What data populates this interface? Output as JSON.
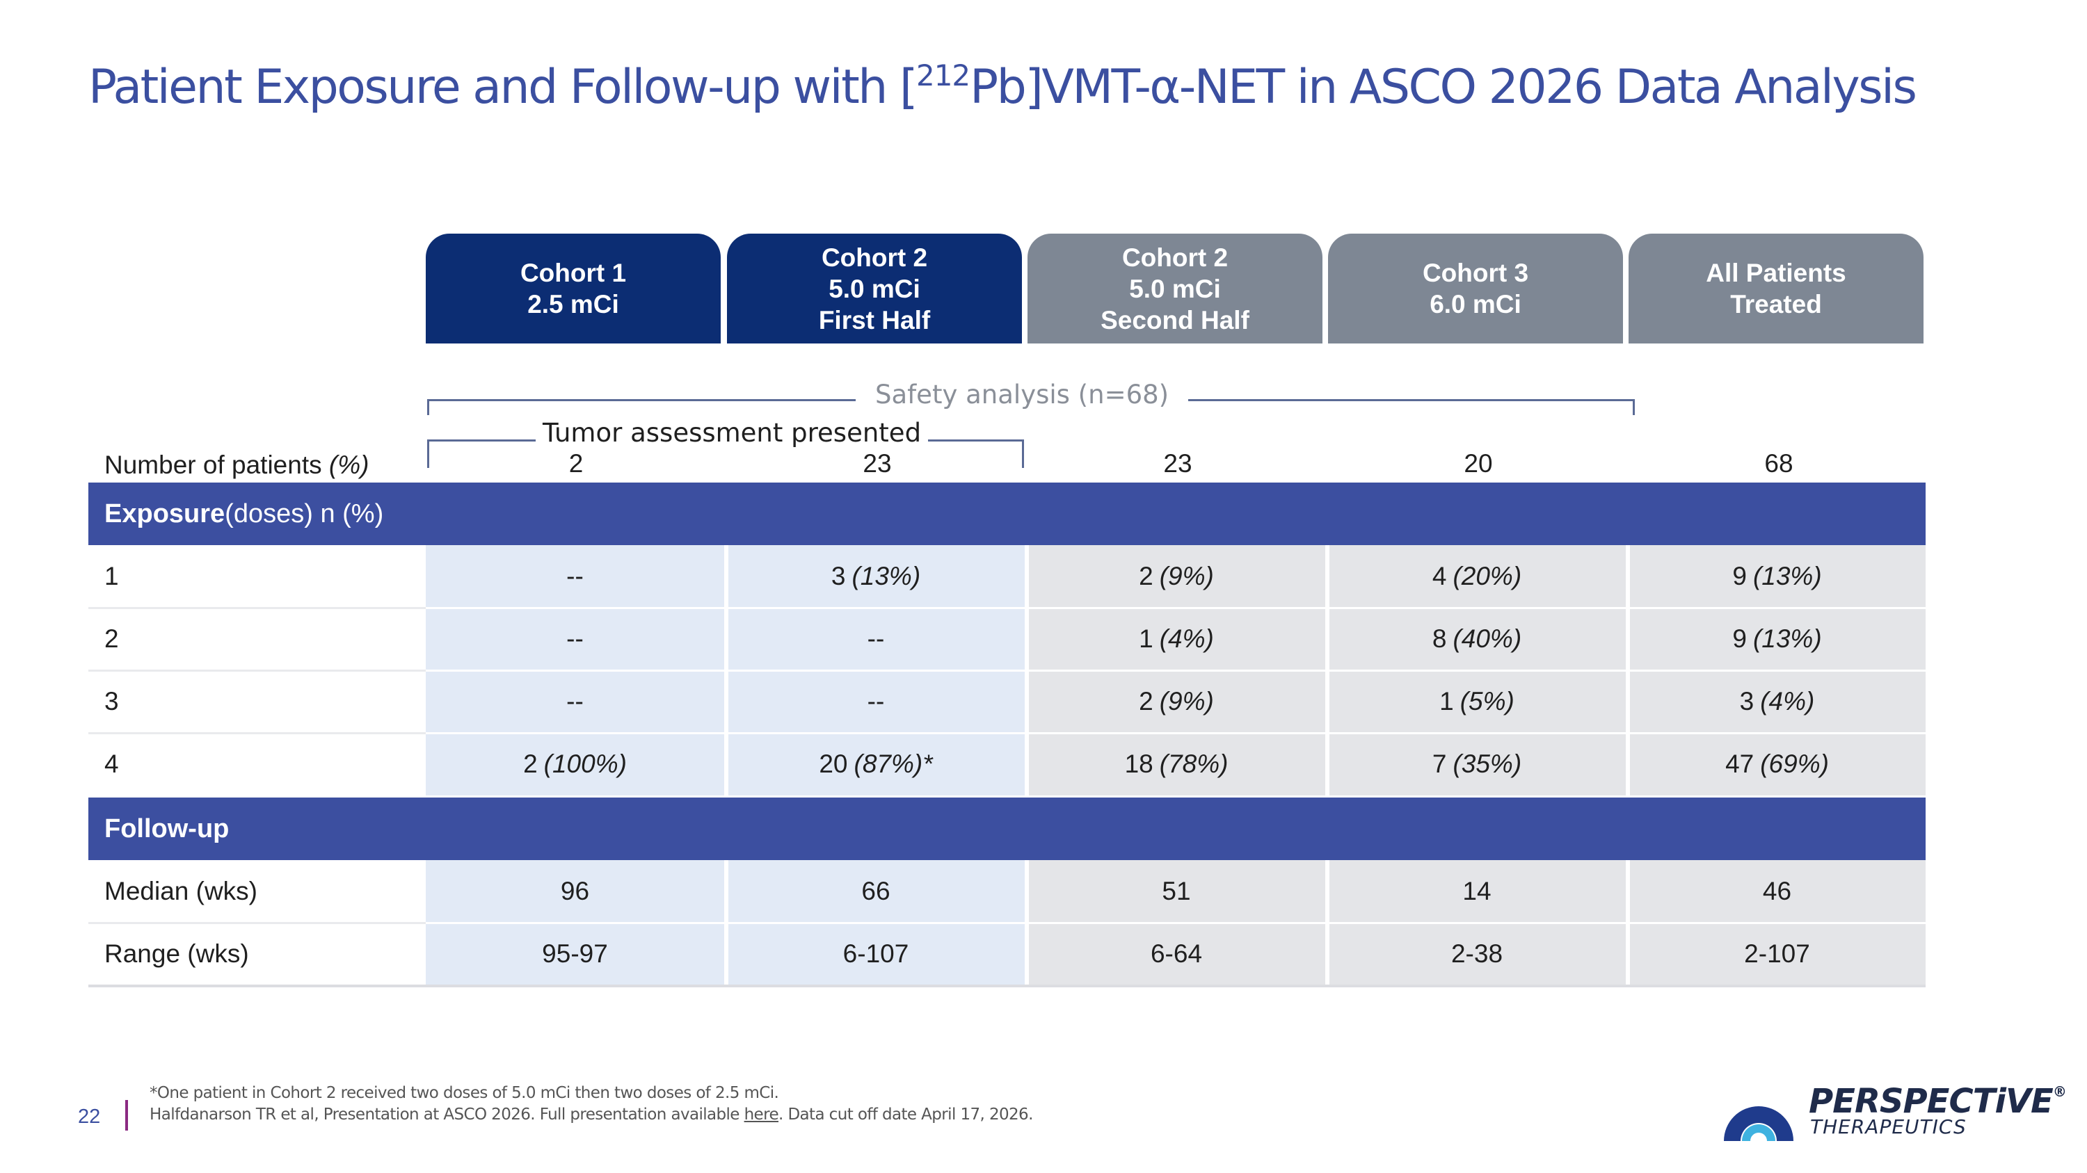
{
  "title": {
    "prefix": "Patient Exposure and Follow-up with [",
    "isotope_mass": "212",
    "suffix": "Pb]VMT-α-NET in ASCO 2026 Data Analysis"
  },
  "columns": [
    {
      "lines": [
        "Cohort 1",
        "2.5 mCi"
      ],
      "style": "dark"
    },
    {
      "lines": [
        "Cohort 2",
        "5.0 mCi",
        "First Half"
      ],
      "style": "dark"
    },
    {
      "lines": [
        "Cohort 2",
        "5.0 mCi",
        "Second Half"
      ],
      "style": "gray"
    },
    {
      "lines": [
        "Cohort 3",
        "6.0 mCi"
      ],
      "style": "gray"
    },
    {
      "lines": [
        "All Patients",
        "Treated"
      ],
      "style": "gray"
    }
  ],
  "brackets": {
    "safety": "Safety analysis (n=68)",
    "tumor": "Tumor assessment presented"
  },
  "patients_row": {
    "label": "Number of patients",
    "label_italic": "(%)",
    "values": [
      "2",
      "23",
      "23",
      "20",
      "68"
    ]
  },
  "exposure": {
    "title_bold": "Exposure",
    "title_rest": " (doses) n (%)",
    "rows": [
      {
        "label": "1",
        "cells": [
          [
            "--",
            ""
          ],
          [
            "3",
            "(13%)"
          ],
          [
            "2",
            "(9%)"
          ],
          [
            "4",
            "(20%)"
          ],
          [
            "9",
            "(13%)"
          ]
        ]
      },
      {
        "label": "2",
        "cells": [
          [
            "--",
            ""
          ],
          [
            "--",
            ""
          ],
          [
            "1",
            "(4%)"
          ],
          [
            "8",
            "(40%)"
          ],
          [
            "9",
            "(13%)"
          ]
        ]
      },
      {
        "label": "3",
        "cells": [
          [
            "--",
            ""
          ],
          [
            "--",
            ""
          ],
          [
            "2",
            "(9%)"
          ],
          [
            "1",
            "(5%)"
          ],
          [
            "3",
            "(4%)"
          ]
        ]
      },
      {
        "label": "4",
        "cells": [
          [
            "2",
            "(100%)"
          ],
          [
            "20",
            "(87%)*"
          ],
          [
            "18",
            "(78%)"
          ],
          [
            "7",
            "(35%)"
          ],
          [
            "47",
            "(69%)"
          ]
        ]
      }
    ]
  },
  "followup": {
    "title": "Follow-up",
    "rows": [
      {
        "label": "Median (wks)",
        "cells": [
          [
            "96",
            ""
          ],
          [
            "66",
            ""
          ],
          [
            "51",
            ""
          ],
          [
            "14",
            ""
          ],
          [
            "46",
            ""
          ]
        ]
      },
      {
        "label": "Range (wks)",
        "cells": [
          [
            "95-97",
            ""
          ],
          [
            "6-107",
            ""
          ],
          [
            "6-64",
            ""
          ],
          [
            "2-38",
            ""
          ],
          [
            "2-107",
            ""
          ]
        ]
      }
    ]
  },
  "footer": {
    "page_number": "22",
    "note1": "*One patient in Cohort 2 received two doses of 5.0 mCi then two doses of 2.5 mCi.",
    "note2_pre": "Halfdanarson TR et al, Presentation at ASCO 2026. Full presentation available ",
    "note2_link": "here",
    "note2_post": ". Data cut off date April 17, 2026."
  },
  "logo": {
    "name": "PERSPECTiVE",
    "mark": "®",
    "sub": "THERAPEUTICS"
  },
  "colors": {
    "title": "#3b4fa0",
    "header_dark": "#0c2d73",
    "header_gray": "#7e8794",
    "section_bar": "#3c4fa0",
    "cell_blue": "#e2eaf6",
    "cell_gray": "#e4e5e8",
    "accent_bar": "#8b2a82"
  }
}
